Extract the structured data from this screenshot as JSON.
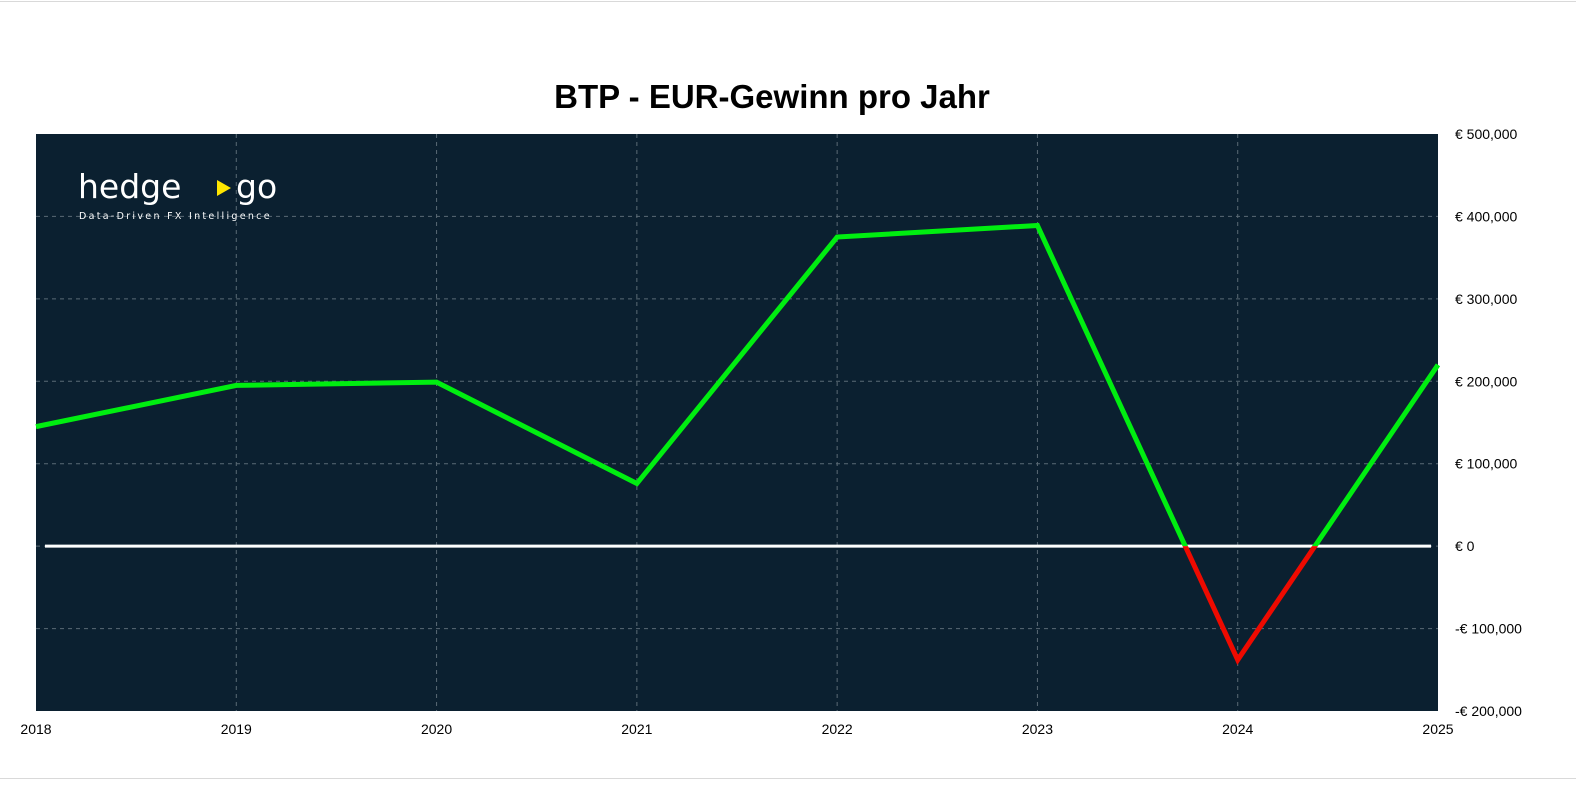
{
  "chart_data": {
    "type": "line",
    "title": "BTP - EUR-Gewinn pro Jahr",
    "xlabel": "",
    "ylabel": "",
    "x": [
      "2018",
      "2019",
      "2020",
      "2021",
      "2022",
      "2023",
      "2024",
      "2025"
    ],
    "series": [
      {
        "values": [
          145000,
          195000,
          199000,
          76000,
          375000,
          389000,
          -138000,
          220000
        ]
      }
    ],
    "ylim": [
      -200000,
      500000
    ],
    "yticks": [
      500000,
      400000,
      300000,
      200000,
      100000,
      0,
      -100000,
      -200000
    ],
    "ytick_labels": [
      "€ 500,000",
      "€ 400,000",
      "€ 300,000",
      "€ 200,000",
      "€ 100,000",
      "€ 0",
      "-€ 100,000",
      "-€ 200,000"
    ],
    "y_axis_position": "right",
    "grid": true,
    "legend": "none",
    "colors": {
      "positive": "#00ee10",
      "negative": "#ee0a00",
      "background": "#0b2030",
      "zero_line": "#ffffff",
      "grid": "#5a6a75"
    }
  },
  "logo": {
    "name": "hedge",
    "name2": "go",
    "tagline": "Data-Driven FX Intelligence",
    "accent": "#ffe600"
  }
}
